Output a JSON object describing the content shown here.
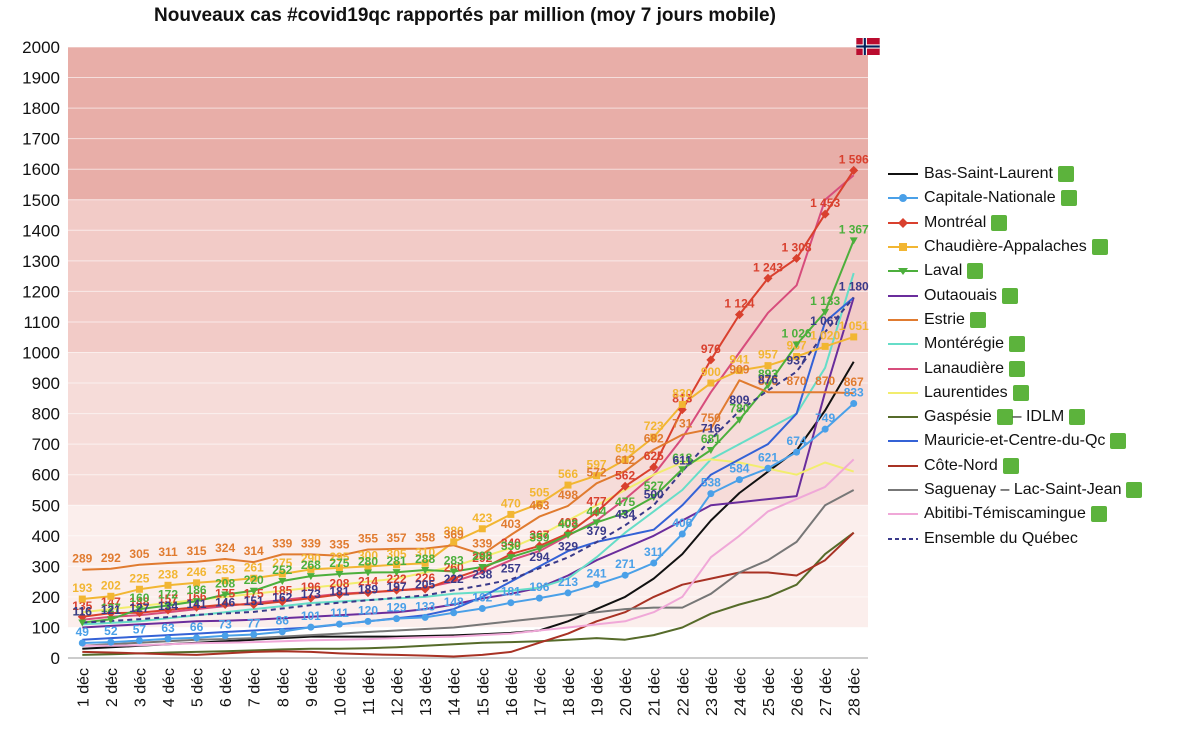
{
  "chart_data": {
    "type": "line",
    "title": "Nouveaux cas #covid19qc rapportés par million (moy 7 jours mobile)",
    "xlabel": "",
    "ylabel": "",
    "ylim": [
      0,
      2000
    ],
    "yticks": [
      0,
      100,
      200,
      300,
      400,
      500,
      600,
      700,
      800,
      900,
      1000,
      1100,
      1200,
      1300,
      1400,
      1500,
      1600,
      1700,
      1800,
      1900,
      2000
    ],
    "categories": [
      "1 déc",
      "2 déc",
      "3 déc",
      "4 déc",
      "5 déc",
      "6 déc",
      "7 déc",
      "8 déc",
      "9 déc",
      "10 déc",
      "11 déc",
      "12 déc",
      "13 déc",
      "14 déc",
      "15 déc",
      "16 déc",
      "17 déc",
      "18 déc",
      "19 déc",
      "20 déc",
      "21 déc",
      "22 déc",
      "23 déc",
      "24 déc",
      "25 déc",
      "26 déc",
      "27 déc",
      "28 déc"
    ],
    "bands": [
      {
        "from": 1500,
        "to": 2000,
        "color": "#e8aea8"
      },
      {
        "from": 1000,
        "to": 1500,
        "color": "#f2cbc7"
      },
      {
        "from": 500,
        "to": 1000,
        "color": "#f6dcd9"
      },
      {
        "from": 100,
        "to": 500,
        "color": "#fbeeec"
      }
    ],
    "series": [
      {
        "name": "Bas-Saint-Laurent",
        "color": "#111111",
        "marker": "none",
        "labels": false,
        "values": [
          30,
          35,
          40,
          45,
          50,
          55,
          60,
          65,
          70,
          70,
          70,
          70,
          72,
          74,
          78,
          82,
          90,
          120,
          160,
          200,
          260,
          340,
          450,
          540,
          610,
          680,
          810,
          970
        ]
      },
      {
        "name": "Capitale-Nationale",
        "color": "#4aa0e8",
        "marker": "circle",
        "labels": true,
        "values": [
          49,
          52,
          57,
          63,
          66,
          73,
          77,
          86,
          101,
          111,
          120,
          129,
          133,
          148,
          162,
          181,
          196,
          213,
          241,
          271,
          311,
          406,
          538,
          584,
          621,
          674,
          749,
          833
        ]
      },
      {
        "name": "Montréal",
        "color": "#d9402e",
        "marker": "diamond",
        "labels": true,
        "values": [
          135,
          147,
          148,
          157,
          166,
          175,
          175,
          185,
          196,
          208,
          214,
          222,
          226,
          260,
          292,
          340,
          367,
          408,
          477,
          562,
          625,
          813,
          976,
          1124,
          1243,
          1308,
          1453,
          1596
        ]
      },
      {
        "name": "Chaudière-Appalaches",
        "color": "#f2b632",
        "marker": "square",
        "labels": true,
        "values": [
          193,
          202,
          225,
          238,
          246,
          253,
          261,
          275,
          290,
          295,
          300,
          305,
          310,
          380,
          423,
          470,
          505,
          566,
          597,
          649,
          723,
          830,
          900,
          941,
          957,
          987,
          1020,
          1051
        ]
      },
      {
        "name": "Laval",
        "color": "#4caf3c",
        "marker": "triangle",
        "labels": true,
        "values": [
          116,
          127,
          160,
          172,
          186,
          208,
          220,
          252,
          268,
          275,
          280,
          281,
          288,
          283,
          298,
          330,
          359,
          403,
          444,
          475,
          527,
          618,
          681,
          780,
          893,
          1026,
          1133,
          1367
        ]
      },
      {
        "name": "Outaouais",
        "color": "#6a2d9c",
        "marker": "none",
        "labels": false,
        "values": [
          100,
          105,
          110,
          115,
          120,
          122,
          125,
          130,
          135,
          140,
          145,
          150,
          160,
          175,
          195,
          210,
          230,
          270,
          320,
          360,
          400,
          450,
          500,
          510,
          520,
          530,
          870,
          1180
        ]
      },
      {
        "name": "Estrie",
        "color": "#e07b30",
        "marker": "none",
        "labels": true,
        "values": [
          289,
          292,
          305,
          311,
          315,
          324,
          314,
          339,
          339,
          335,
          355,
          357,
          358,
          369,
          339,
          403,
          463,
          498,
          572,
          612,
          682,
          731,
          750,
          909,
          870,
          870,
          870,
          867
        ]
      },
      {
        "name": "Montérégie",
        "color": "#66ddc8",
        "marker": "none",
        "labels": false,
        "values": [
          110,
          115,
          120,
          130,
          140,
          150,
          160,
          170,
          180,
          185,
          190,
          195,
          200,
          210,
          215,
          220,
          230,
          260,
          330,
          410,
          480,
          550,
          650,
          700,
          750,
          800,
          950,
          1260
        ]
      },
      {
        "name": "Lanaudière",
        "color": "#d74d7c",
        "marker": "none",
        "labels": false,
        "values": [
          125,
          135,
          140,
          150,
          160,
          170,
          180,
          190,
          200,
          210,
          215,
          220,
          230,
          250,
          280,
          320,
          350,
          400,
          450,
          520,
          600,
          720,
          870,
          1000,
          1130,
          1220,
          1500,
          1580
        ]
      },
      {
        "name": "Laurentides",
        "color": "#f2ed6e",
        "marker": "none",
        "labels": false,
        "values": [
          150,
          160,
          170,
          180,
          190,
          200,
          210,
          220,
          230,
          240,
          250,
          260,
          280,
          300,
          330,
          360,
          400,
          450,
          500,
          550,
          600,
          640,
          650,
          640,
          620,
          600,
          640,
          610
        ]
      },
      {
        "name": "Gaspésie – IDLM",
        "color": "#566b2a",
        "marker": "none",
        "labels": false,
        "values": [
          10,
          12,
          15,
          18,
          20,
          22,
          25,
          28,
          30,
          30,
          32,
          35,
          40,
          45,
          50,
          52,
          55,
          60,
          65,
          60,
          75,
          100,
          145,
          175,
          200,
          240,
          340,
          410
        ]
      },
      {
        "name": "Mauricie-et-Centre-du-Qc",
        "color": "#3462d6",
        "marker": "none",
        "labels": false,
        "values": [
          60,
          65,
          70,
          75,
          80,
          85,
          90,
          95,
          100,
          110,
          120,
          130,
          140,
          160,
          200,
          250,
          300,
          350,
          380,
          400,
          420,
          500,
          600,
          650,
          700,
          800,
          1100,
          1180
        ]
      },
      {
        "name": "Côte-Nord",
        "color": "#a83224",
        "marker": "none",
        "labels": false,
        "values": [
          20,
          18,
          15,
          12,
          10,
          15,
          20,
          22,
          20,
          15,
          12,
          10,
          8,
          5,
          10,
          20,
          50,
          80,
          120,
          150,
          200,
          240,
          260,
          280,
          280,
          270,
          320,
          410
        ]
      },
      {
        "name": "Saguenay – Lac-Saint-Jean",
        "color": "#777777",
        "marker": "none",
        "labels": false,
        "values": [
          40,
          45,
          50,
          55,
          60,
          62,
          65,
          70,
          75,
          80,
          85,
          90,
          95,
          100,
          110,
          120,
          130,
          140,
          150,
          160,
          165,
          165,
          210,
          280,
          320,
          380,
          500,
          550
        ]
      },
      {
        "name": "Abitibi-Témiscamingue",
        "color": "#f0a8d8",
        "marker": "none",
        "labels": false,
        "values": [
          40,
          40,
          42,
          45,
          48,
          50,
          52,
          55,
          58,
          60,
          62,
          65,
          68,
          70,
          75,
          80,
          90,
          100,
          110,
          120,
          150,
          200,
          330,
          400,
          480,
          520,
          560,
          650
        ]
      },
      {
        "name": "Ensemble du Québec",
        "color": "#3a3a8a",
        "marker": "none",
        "labels": true,
        "dashed": true,
        "values": [
          116,
          121,
          127,
          134,
          141,
          146,
          151,
          162,
          173,
          181,
          189,
          197,
          205,
          222,
          238,
          257,
          294,
          329,
          379,
          434,
          500,
          611,
          716,
          809,
          876,
          937,
          1067,
          1180
        ]
      }
    ],
    "legend": {
      "placement": "right",
      "items": [
        {
          "label": "Bas-Saint-Laurent",
          "square": true
        },
        {
          "label": "Capitale-Nationale",
          "square": true
        },
        {
          "label": "Montréal",
          "square": true
        },
        {
          "label": "Chaudière-Appalaches",
          "square": true
        },
        {
          "label": "Laval",
          "square": true
        },
        {
          "label": "Outaouais",
          "square": true
        },
        {
          "label": "Estrie",
          "square": true
        },
        {
          "label": "Montérégie",
          "square": true
        },
        {
          "label": "Lanaudière",
          "square": true
        },
        {
          "label": "Laurentides",
          "square": true
        },
        {
          "label": "Gaspésie",
          "square": true,
          "suffix": " – IDLM",
          "square2": true
        },
        {
          "label": "Mauricie-et-Centre-du-Qc",
          "square": true
        },
        {
          "label": "Côte-Nord",
          "square": true
        },
        {
          "label": "Saguenay – Lac-Saint-Jean",
          "square": true
        },
        {
          "label": "Abitibi-Témiscamingue",
          "square": true
        },
        {
          "label": "Ensemble du Québec",
          "square": false
        }
      ]
    },
    "flag_icon": "norway-flag-icon",
    "status_square_color": "#5cb33c"
  }
}
